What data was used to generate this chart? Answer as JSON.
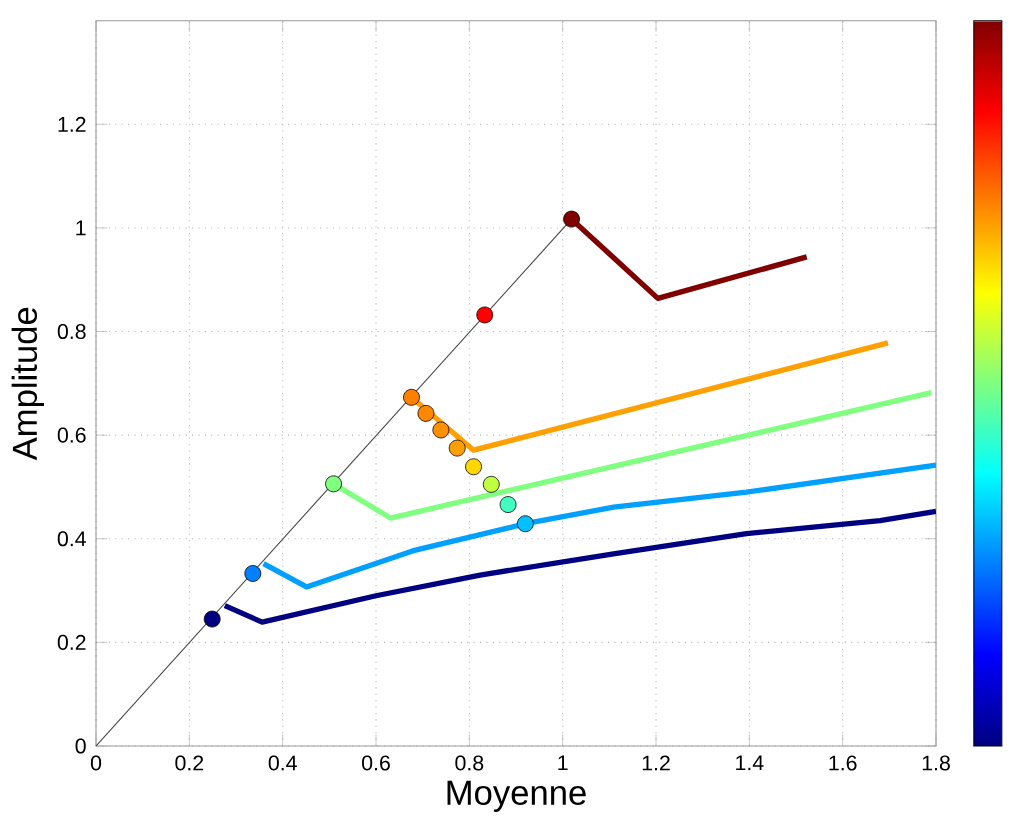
{
  "chart_data": {
    "type": "line",
    "xlabel": "Moyenne",
    "ylabel": "Amplitude",
    "xlim": [
      0,
      1.8
    ],
    "ylim": [
      0,
      1.4
    ],
    "xticks": [
      0,
      0.2,
      0.4,
      0.6,
      0.8,
      1,
      1.2,
      1.4,
      1.6,
      1.8
    ],
    "yticks": [
      0,
      0.2,
      0.4,
      0.6,
      0.8,
      1,
      1.2
    ],
    "grid": true,
    "marker": "none",
    "series": [
      {
        "color": "#404040",
        "x": [
          0,
          1.019
        ],
        "values": [
          0,
          1.017
        ]
      },
      {
        "color": "#000080",
        "x": [
          0.276,
          0.356,
          0.6,
          0.823,
          1.109,
          1.394,
          1.68,
          1.8
        ],
        "values": [
          0.271,
          0.239,
          0.29,
          0.33,
          0.371,
          0.41,
          0.435,
          0.453
        ]
      },
      {
        "color": "#00a0ff",
        "x": [
          0.359,
          0.451,
          0.68,
          0.92,
          1.109,
          1.394,
          1.8
        ],
        "values": [
          0.352,
          0.307,
          0.377,
          0.429,
          0.461,
          0.49,
          0.542
        ]
      },
      {
        "color": "#80ff80",
        "x": [
          0.509,
          0.631,
          1.79
        ],
        "values": [
          0.506,
          0.44,
          0.682
        ]
      },
      {
        "color": "#ffa000",
        "x": [
          0.676,
          0.809,
          1.697
        ],
        "values": [
          0.673,
          0.571,
          0.778
        ]
      },
      {
        "color": "#800000",
        "x": [
          1.019,
          1.204,
          1.523
        ],
        "values": [
          1.017,
          0.864,
          0.944
        ]
      },
      {
        "type": "scatter",
        "marker": "circle",
        "x": [
          0.249,
          0.336,
          0.509,
          0.676,
          0.707,
          0.739,
          0.774,
          0.809,
          0.847,
          0.883,
          0.92,
          0.833,
          1.019
        ],
        "values": [
          0.245,
          0.333,
          0.506,
          0.673,
          0.642,
          0.61,
          0.575,
          0.539,
          0.505,
          0.466,
          0.429,
          0.832,
          1.017
        ],
        "colors": [
          "#000080",
          "#0080ff",
          "#80ff80",
          "#ff8000",
          "#ff8800",
          "#ff9000",
          "#ffa000",
          "#ffd700",
          "#c0ff40",
          "#40ffc0",
          "#00c0ff",
          "#ff0000",
          "#800000"
        ]
      }
    ]
  }
}
